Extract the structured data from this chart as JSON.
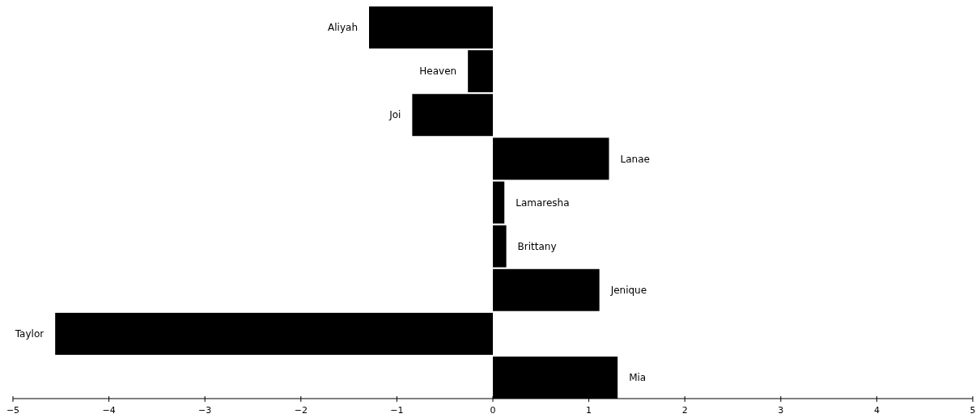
{
  "chart_data": {
    "type": "bar",
    "orientation": "horizontal",
    "categories": [
      "Aliyah",
      "Heaven",
      "Joi",
      "Lanae",
      "Lamaresha",
      "Brittany",
      "Jenique",
      "Taylor",
      "Mia"
    ],
    "values": [
      -1.29,
      -0.26,
      -0.84,
      1.21,
      0.12,
      0.14,
      1.11,
      -4.56,
      1.3
    ],
    "color": "#000000",
    "xlim": [
      -5,
      5
    ],
    "xticks": [
      -5,
      -4,
      -3,
      -2,
      -1,
      0,
      1,
      2,
      3,
      4,
      5
    ],
    "tick_labels": "x",
    "grid": false
  }
}
